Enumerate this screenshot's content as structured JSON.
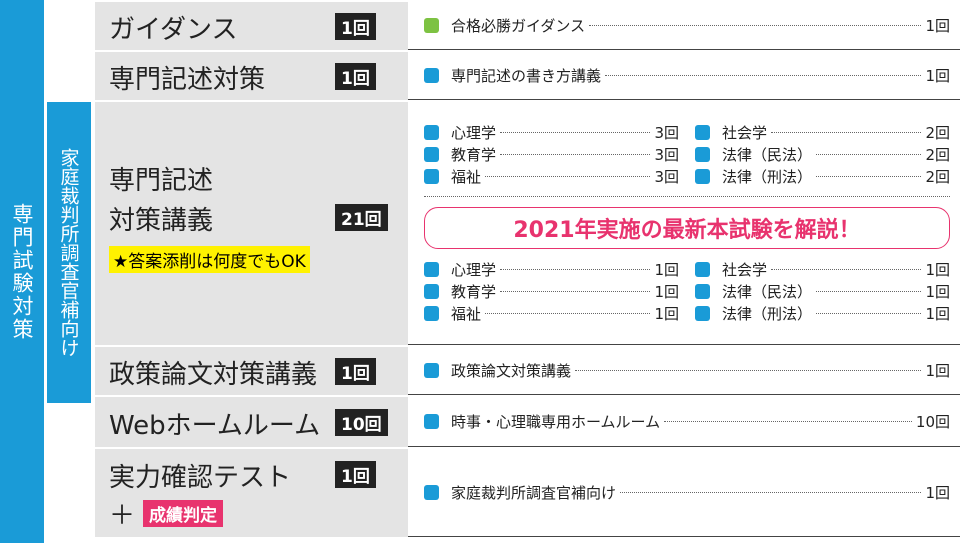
{
  "sidebar": {
    "label": "専門試験対策",
    "sub_label": "家庭裁判所調査官補向け"
  },
  "rows": [
    {
      "title_lines": [
        "ガイダンス"
      ],
      "count": "1回",
      "marker_color": "#7dc242",
      "items": [
        {
          "name": "合格必勝ガイダンス",
          "count": "1回"
        }
      ]
    },
    {
      "title_lines": [
        "専門記述対策"
      ],
      "count": "1回",
      "marker_color": "#1a9bd7",
      "items": [
        {
          "name": "専門記述の書き方講義",
          "count": "1回"
        }
      ]
    },
    {
      "title_lines": [
        "専門記述",
        "対策講義"
      ],
      "count": "21回",
      "note": "★答案添削は何度でもOK",
      "marker_color": "#1a9bd7",
      "items_top": [
        {
          "name": "心理学",
          "count": "3回"
        },
        {
          "name": "社会学",
          "count": "2回"
        },
        {
          "name": "教育学",
          "count": "3回"
        },
        {
          "name": "法律（民法）",
          "count": "2回"
        },
        {
          "name": "福祉",
          "count": "3回"
        },
        {
          "name": "法律（刑法）",
          "count": "2回"
        }
      ],
      "banner": "2021年実施の最新本試験を解説！",
      "items_bottom": [
        {
          "name": "心理学",
          "count": "1回"
        },
        {
          "name": "社会学",
          "count": "1回"
        },
        {
          "name": "教育学",
          "count": "1回"
        },
        {
          "name": "法律（民法）",
          "count": "1回"
        },
        {
          "name": "福祉",
          "count": "1回"
        },
        {
          "name": "法律（刑法）",
          "count": "1回"
        }
      ]
    },
    {
      "title_lines": [
        "政策論文対策講義"
      ],
      "count": "1回",
      "marker_color": "#1a9bd7",
      "items": [
        {
          "name": "政策論文対策講義",
          "count": "1回"
        }
      ]
    },
    {
      "title_lines": [
        "Webホームルーム"
      ],
      "count": "10回",
      "marker_color": "#1a9bd7",
      "items": [
        {
          "name": "時事・心理職専用ホームルーム",
          "count": "10回"
        }
      ]
    },
    {
      "title_lines": [
        "実力確認テスト"
      ],
      "count": "1回",
      "extra": "＋",
      "tag": "成績判定",
      "marker_color": "#1a9bd7",
      "items": [
        {
          "name": "家庭裁判所調査官補向け",
          "count": "1回"
        }
      ]
    }
  ]
}
